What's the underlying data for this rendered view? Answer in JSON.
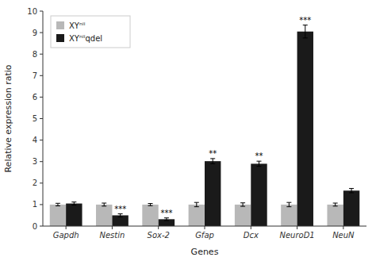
{
  "chart_data": {
    "type": "bar",
    "xlabel": "Genes",
    "ylabel": "Relative expression ratio",
    "categories": [
      "Gapdh",
      "Nestin",
      "Sox-2",
      "Gfap",
      "Dcx",
      "NeuroD1",
      "NeuN"
    ],
    "series": [
      {
        "name": "XYⁿⁱⁱ",
        "color": "#b8b8b8",
        "values": [
          1.0,
          1.0,
          1.0,
          1.0,
          1.0,
          1.0,
          1.0
        ],
        "errors": [
          0.06,
          0.07,
          0.05,
          0.1,
          0.08,
          0.1,
          0.07
        ]
      },
      {
        "name": "XYⁿⁱⁱqdel",
        "color": "#1a1a1a",
        "values": [
          1.05,
          0.5,
          0.32,
          3.02,
          2.9,
          9.05,
          1.65
        ],
        "errors": [
          0.07,
          0.07,
          0.06,
          0.12,
          0.12,
          0.3,
          0.1
        ]
      }
    ],
    "annotations": [
      {
        "category": "Nestin",
        "series": "XYⁿⁱⁱqdel",
        "text": "***"
      },
      {
        "category": "Sox-2",
        "series": "XYⁿⁱⁱqdel",
        "text": "***"
      },
      {
        "category": "Gfap",
        "series": "XYⁿⁱⁱqdel",
        "text": "**"
      },
      {
        "category": "Dcx",
        "series": "XYⁿⁱⁱqdel",
        "text": "**"
      },
      {
        "category": "NeuroD1",
        "series": "XYⁿⁱⁱqdel",
        "text": "***"
      }
    ],
    "ylim": [
      0,
      10
    ],
    "yticks": [
      0,
      1,
      2,
      3,
      4,
      5,
      6,
      7,
      8,
      9,
      10
    ],
    "grid": false,
    "legend": "upper left"
  }
}
